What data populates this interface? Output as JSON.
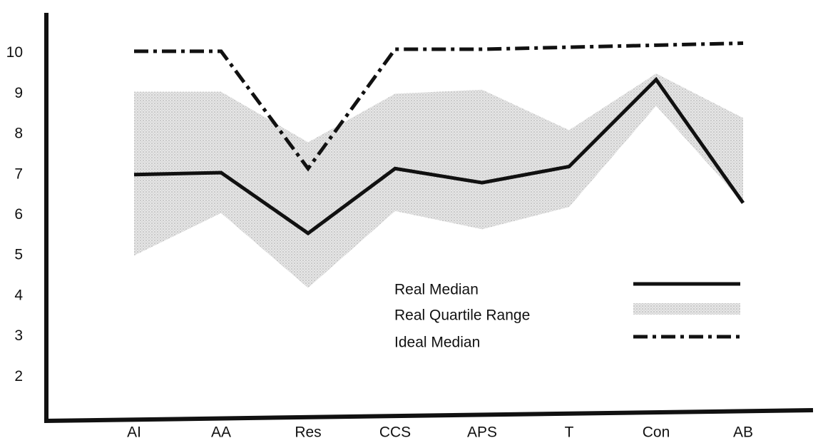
{
  "chart_data": {
    "type": "line",
    "categories": [
      "AI",
      "AA",
      "Res",
      "CCS",
      "APS",
      "T",
      "Con",
      "AB"
    ],
    "series": [
      {
        "name": "Real Median",
        "color": "#111111",
        "dash": "solid",
        "values": [
          7.0,
          7.05,
          5.55,
          7.15,
          6.8,
          7.2,
          9.35,
          6.3
        ]
      },
      {
        "name": "Ideal Median",
        "color": "#111111",
        "dash": "dashdot",
        "values": [
          10.05,
          10.05,
          7.15,
          10.1,
          10.1,
          10.15,
          10.2,
          10.25
        ]
      }
    ],
    "band": {
      "name": "Real Quartile Range",
      "color": "#d4d4d4",
      "upper": [
        9.05,
        9.05,
        7.8,
        9.0,
        9.1,
        8.1,
        9.5,
        8.4
      ],
      "lower": [
        5.0,
        6.05,
        4.2,
        6.1,
        5.65,
        6.2,
        8.7,
        6.3
      ]
    },
    "ylim": [
      1,
      11
    ],
    "yticks": [
      2,
      3,
      4,
      5,
      6,
      7,
      8,
      9,
      10
    ],
    "grid": false
  }
}
